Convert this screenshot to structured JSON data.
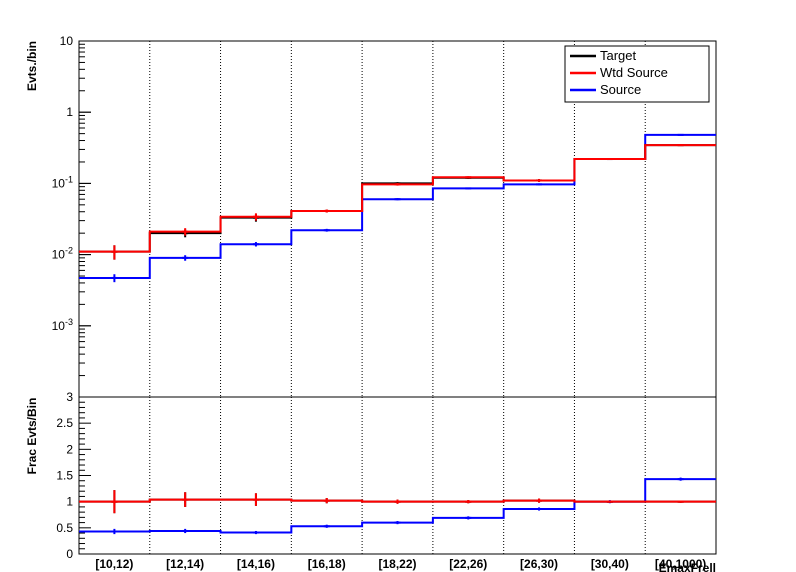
{
  "chart_data": [
    {
      "type": "line",
      "panel": "main",
      "ylabel": "Evts./bin",
      "yscale": "log",
      "ylim": [
        0.0001,
        10
      ],
      "y_tick_labels": [
        {
          "value": 10,
          "base": "10",
          "exp": ""
        },
        {
          "value": 1,
          "base": "1",
          "exp": ""
        },
        {
          "value": 0.1,
          "base": "10",
          "exp": "-1"
        },
        {
          "value": 0.01,
          "base": "10",
          "exp": "-2"
        },
        {
          "value": 0.001,
          "base": "10",
          "exp": "-3"
        }
      ],
      "categories": [
        "[10,12)",
        "[12,14)",
        "[14,16)",
        "[16,18)",
        "[18,22)",
        "[22,26)",
        "[26,30)",
        "[30,40)",
        "[40,1000)"
      ],
      "grid": "vertical dotted",
      "legend_position": "top-right",
      "series": [
        {
          "name": "Target",
          "color": "#000000",
          "values": [
            0.011,
            0.02,
            0.033,
            0.041,
            0.1,
            0.12,
            0.11,
            0.22,
            0.345
          ],
          "errors": [
            0.0025,
            0.0025,
            0.004,
            0.002,
            0.004,
            0.004,
            0.005,
            0.005,
            0.005
          ]
        },
        {
          "name": "Wtd Source",
          "color": "#ff0000",
          "values": [
            0.011,
            0.021,
            0.034,
            0.041,
            0.097,
            0.122,
            0.11,
            0.22,
            0.345
          ],
          "errors": [
            0.0025,
            0.0025,
            0.004,
            0.002,
            0.004,
            0.004,
            0.005,
            0.005,
            0.005
          ]
        },
        {
          "name": "Source",
          "color": "#0000ff",
          "values": [
            0.0047,
            0.009,
            0.014,
            0.022,
            0.06,
            0.085,
            0.097,
            0.22,
            0.48
          ],
          "errors": [
            0.0006,
            0.0008,
            0.001,
            0.001,
            0.002,
            0.002,
            0.003,
            0.005,
            0.006
          ]
        }
      ]
    },
    {
      "type": "line",
      "panel": "ratio",
      "ylabel": "Frac Evts/Bin",
      "ylim": [
        0,
        3
      ],
      "y_ticks": [
        0,
        0.5,
        1,
        1.5,
        2,
        2.5,
        3
      ],
      "categories": [
        "[10,12)",
        "[12,14)",
        "[14,16)",
        "[16,18)",
        "[18,22)",
        "[22,26)",
        "[26,30)",
        "[30,40)",
        "[40,1000)"
      ],
      "xlabel": "EmaxFrell",
      "grid": "vertical dotted",
      "series": [
        {
          "name": "Target",
          "color": "#000000",
          "values": [
            1.0,
            1.04,
            1.04,
            1.02,
            1.0,
            1.0,
            1.02,
            1.0,
            1.0
          ],
          "errors": [
            0.22,
            0.14,
            0.12,
            0.05,
            0.04,
            0.03,
            0.04,
            0.02,
            0.02
          ]
        },
        {
          "name": "Wtd Source",
          "color": "#ff0000",
          "values": [
            1.0,
            1.04,
            1.04,
            1.02,
            1.0,
            1.0,
            1.02,
            1.0,
            1.0
          ],
          "errors": [
            0.22,
            0.14,
            0.12,
            0.05,
            0.04,
            0.03,
            0.04,
            0.02,
            0.02
          ]
        },
        {
          "name": "Source",
          "color": "#0000ff",
          "values": [
            0.43,
            0.44,
            0.41,
            0.53,
            0.6,
            0.69,
            0.86,
            1.0,
            1.43
          ],
          "errors": [
            0.05,
            0.04,
            0.03,
            0.03,
            0.03,
            0.03,
            0.03,
            0.03,
            0.03
          ]
        }
      ]
    }
  ]
}
